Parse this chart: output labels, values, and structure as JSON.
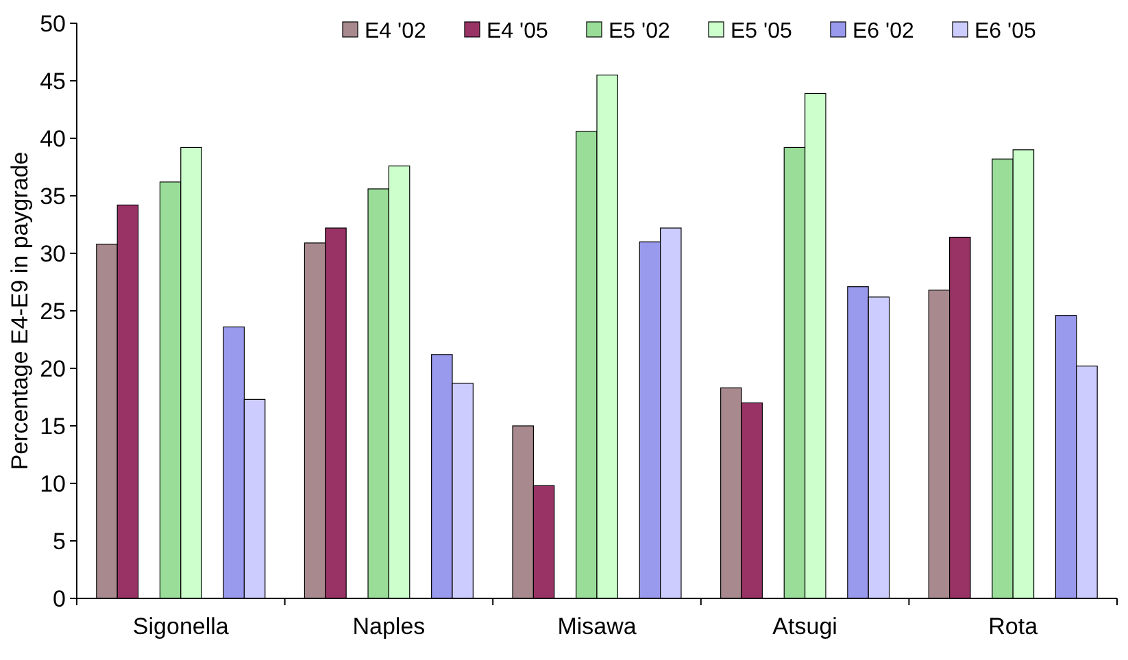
{
  "chart_data": {
    "type": "bar",
    "ylabel": "Percentage E4-E9 in paygrade",
    "categories": [
      "Sigonella",
      "Naples",
      "Misawa",
      "Atsugi",
      "Rota"
    ],
    "series": [
      {
        "name": "E4 '02",
        "color": "#a88a8e",
        "values": [
          30.8,
          30.9,
          15.0,
          18.3,
          26.8
        ]
      },
      {
        "name": "E4 '05",
        "color": "#993366",
        "values": [
          34.2,
          32.2,
          9.8,
          17.0,
          31.4
        ]
      },
      {
        "name": "E5 '02",
        "color": "#99dd99",
        "values": [
          36.2,
          35.6,
          40.6,
          39.2,
          38.2
        ]
      },
      {
        "name": "E5 '05",
        "color": "#ccffcc",
        "values": [
          39.2,
          37.6,
          45.5,
          43.9,
          39.0
        ]
      },
      {
        "name": "E6 '02",
        "color": "#9999ee",
        "values": [
          23.6,
          21.2,
          31.0,
          27.1,
          24.6
        ]
      },
      {
        "name": "E6 '05",
        "color": "#ccccff",
        "values": [
          17.3,
          18.7,
          32.2,
          26.2,
          20.2
        ]
      }
    ],
    "ylim": [
      0,
      50
    ],
    "yticks": [
      0,
      5,
      10,
      15,
      20,
      25,
      30,
      35,
      40,
      45,
      50
    ],
    "grid": false,
    "legend": "top"
  }
}
